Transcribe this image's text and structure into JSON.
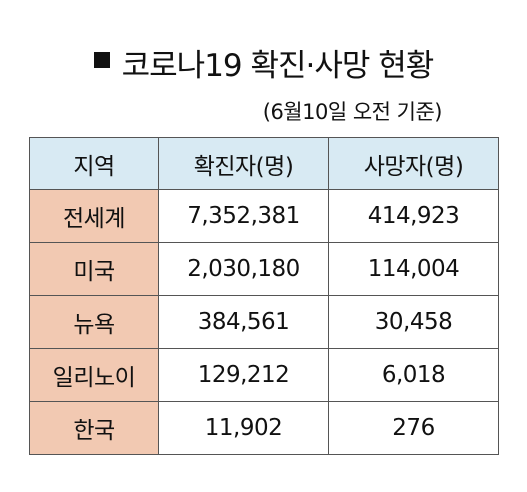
{
  "title": "코로나19 확진·사망 현황",
  "subtitle": "(6월10일 오전 기준)",
  "colors": {
    "header_bg": "#d8eaf3",
    "region_bg": "#f2c9b2",
    "border": "#555555"
  },
  "table": {
    "headers": [
      "지역",
      "확진자(명)",
      "사망자(명)"
    ],
    "rows": [
      {
        "region": "전세계",
        "confirmed": "7,352,381",
        "deaths": "414,923"
      },
      {
        "region": "미국",
        "confirmed": "2,030,180",
        "deaths": "114,004"
      },
      {
        "region": "뉴욕",
        "confirmed": "384,561",
        "deaths": "30,458"
      },
      {
        "region": "일리노이",
        "confirmed": "129,212",
        "deaths": "6,018"
      },
      {
        "region": "한국",
        "confirmed": "11,902",
        "deaths": "276"
      }
    ]
  }
}
